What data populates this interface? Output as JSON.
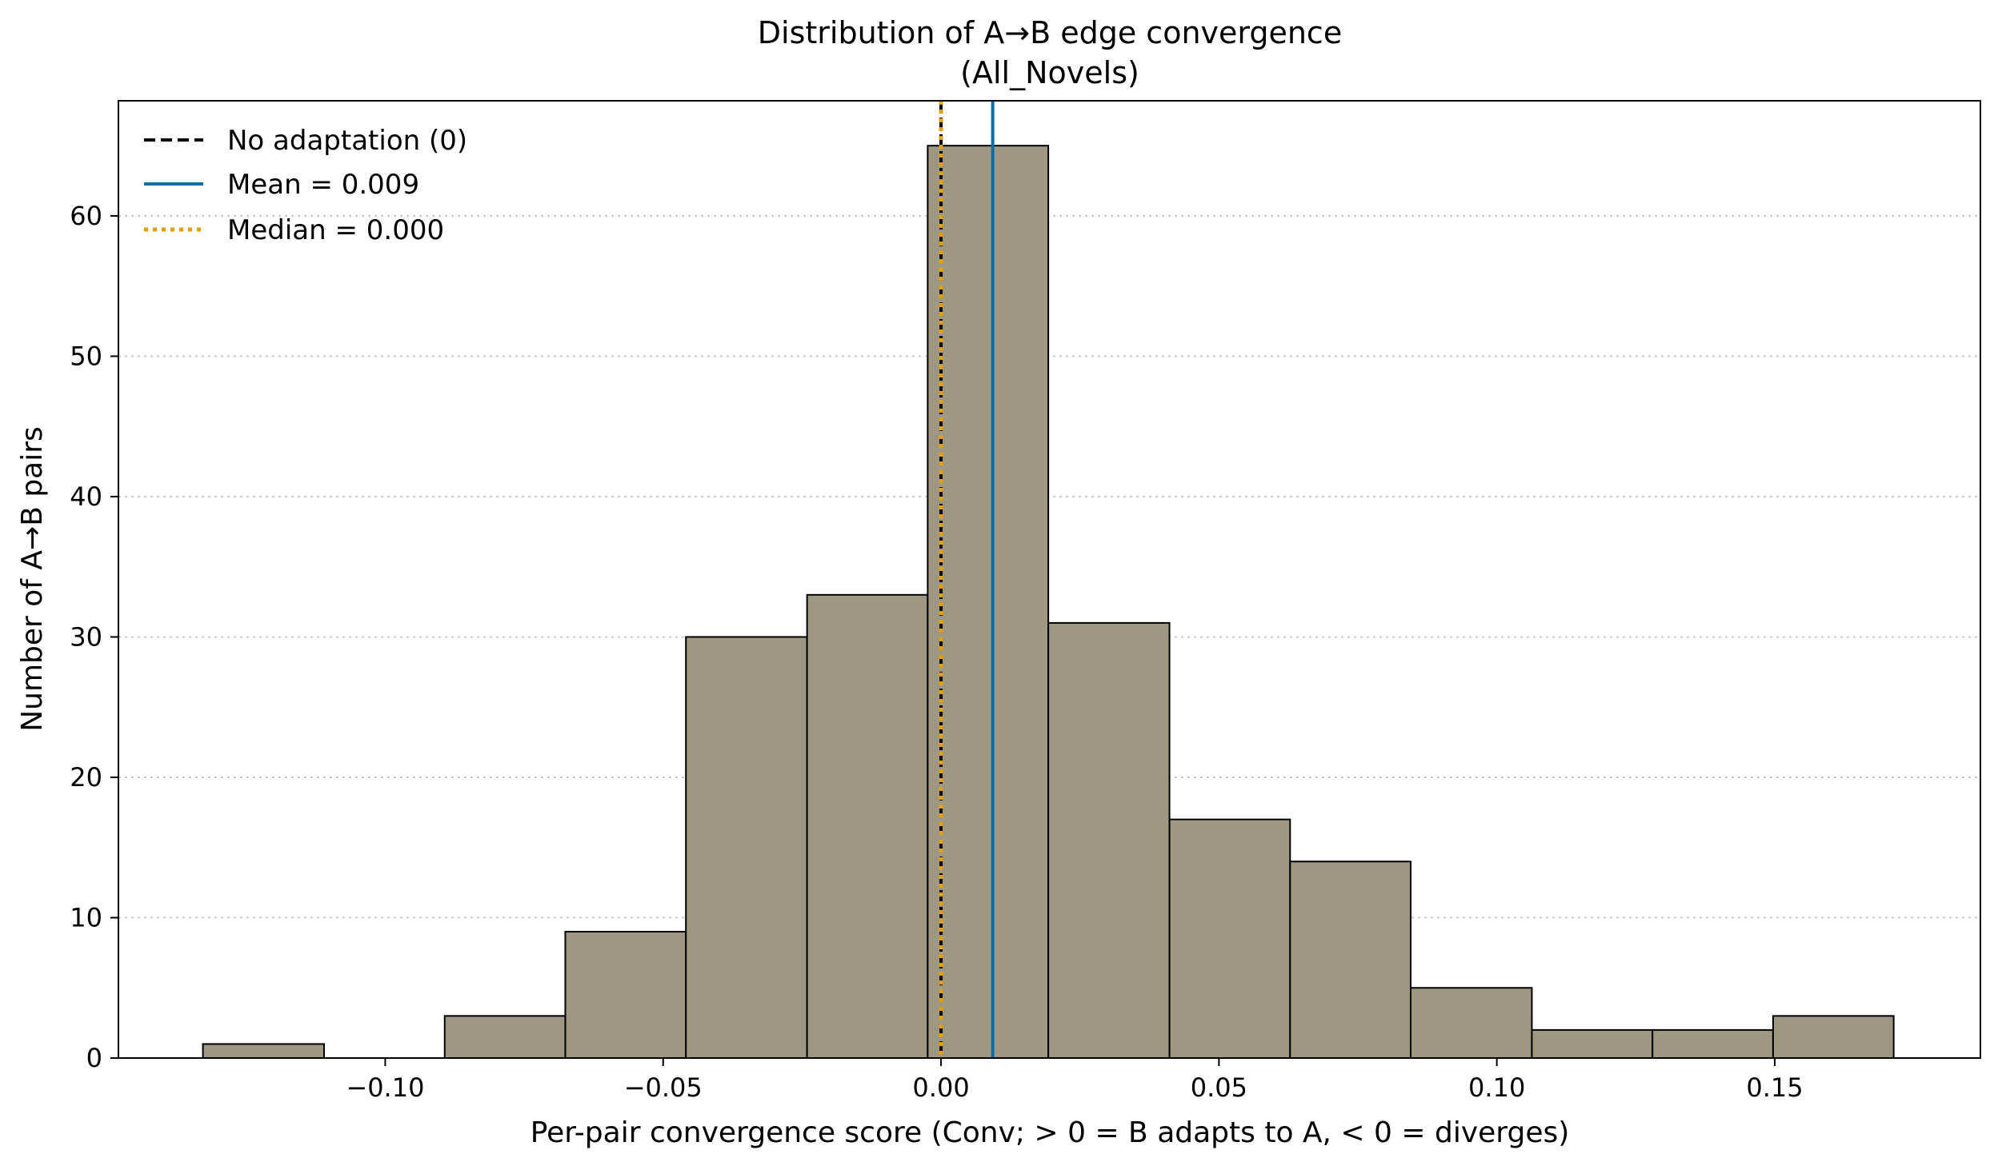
{
  "chart_data": {
    "type": "bar",
    "subtype": "histogram",
    "title": "Distribution of A→B edge convergence",
    "subtitle": "(All_Novels)",
    "xlabel": "Per-pair convergence score (Conv; > 0 = B adapts to A, < 0 = diverges)",
    "ylabel": "Number of A→B pairs",
    "xlim": [
      -0.148,
      0.187
    ],
    "ylim": [
      0,
      68.2
    ],
    "x_ticks": [
      -0.1,
      -0.05,
      0.0,
      0.05,
      0.1,
      0.15
    ],
    "x_tick_labels": [
      "−0.10",
      "−0.05",
      "0.00",
      "0.05",
      "0.10",
      "0.15"
    ],
    "y_ticks": [
      0,
      10,
      20,
      30,
      40,
      50,
      60
    ],
    "y_tick_labels": [
      "0",
      "10",
      "20",
      "30",
      "40",
      "50",
      "60"
    ],
    "grid": "y-axis dotted",
    "bins": [
      {
        "start": -0.1328,
        "end": -0.111,
        "count": 1
      },
      {
        "start": -0.111,
        "end": -0.0893,
        "count": 0
      },
      {
        "start": -0.0893,
        "end": -0.0676,
        "count": 3
      },
      {
        "start": -0.0676,
        "end": -0.0459,
        "count": 9
      },
      {
        "start": -0.0459,
        "end": -0.0241,
        "count": 30
      },
      {
        "start": -0.0241,
        "end": -0.0024,
        "count": 33
      },
      {
        "start": -0.0024,
        "end": 0.0193,
        "count": 65
      },
      {
        "start": 0.0193,
        "end": 0.0411,
        "count": 31
      },
      {
        "start": 0.0411,
        "end": 0.0628,
        "count": 17
      },
      {
        "start": 0.0628,
        "end": 0.0845,
        "count": 14
      },
      {
        "start": 0.0845,
        "end": 0.1063,
        "count": 5
      },
      {
        "start": 0.1063,
        "end": 0.128,
        "count": 2
      },
      {
        "start": 0.128,
        "end": 0.1497,
        "count": 2
      },
      {
        "start": 0.1497,
        "end": 0.1714,
        "count": 3
      }
    ],
    "bar_color": "#9e9883",
    "bar_edge_color": "#000000",
    "reference_lines": [
      {
        "label": "No adaptation (0)",
        "x": 0.0,
        "color": "#000000",
        "style": "dashed"
      },
      {
        "label": "Mean = 0.009",
        "x": 0.0093,
        "color": "#0a6fa8",
        "style": "solid"
      },
      {
        "label": "Median = 0.000",
        "x": 0.0,
        "color": "#e69f00",
        "style": "dotted"
      }
    ],
    "legend_position": "top-left"
  }
}
